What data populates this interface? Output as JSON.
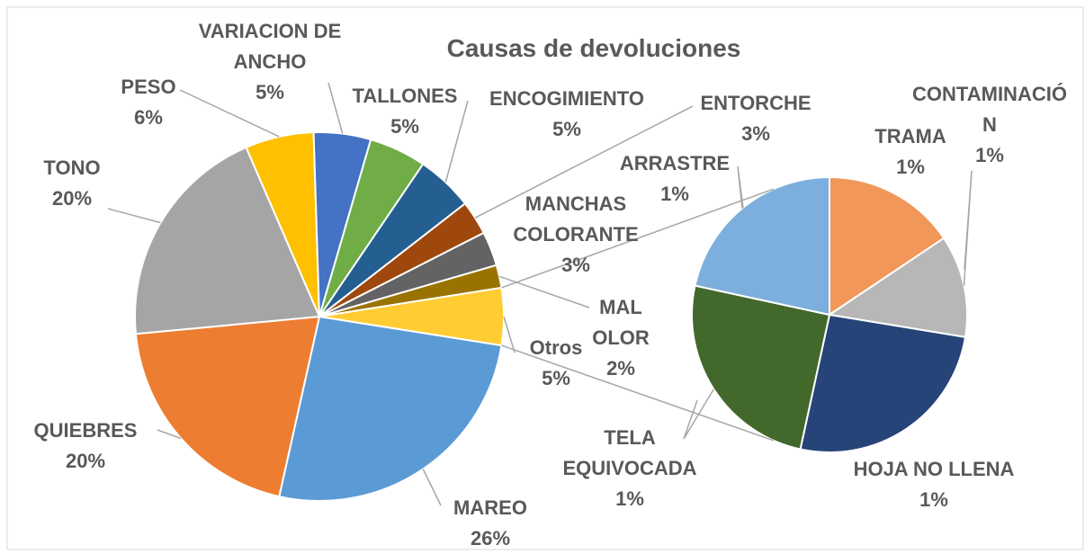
{
  "chart_data": {
    "type": "pie_of_pie",
    "title": "Causas de devoluciones",
    "categories": [
      "MAREO",
      "QUIEBRES",
      "TONO",
      "PESO",
      "VARIACION DE ANCHO",
      "TALLONES",
      "ENCOGIMIENTO",
      "ENTORCHE",
      "MANCHAS COLORANTE",
      "MAL OLOR",
      "Otros"
    ],
    "values": [
      26,
      20,
      20,
      6,
      5,
      5,
      5,
      3,
      3,
      2,
      5
    ],
    "value_labels": [
      "26%",
      "20%",
      "20%",
      "6%",
      "5%",
      "5%",
      "5%",
      "3%",
      "3%",
      "2%",
      "5%"
    ],
    "colors": [
      "#5b9bd5",
      "#ed7d31",
      "#a5a5a5",
      "#ffc000",
      "#4472c4",
      "#70ad47",
      "#255e91",
      "#9e480e",
      "#636363",
      "#997300",
      "#ffcd33"
    ],
    "secondary": {
      "categories": [
        "TRAMA",
        "CONTAMINACIÓN",
        "HOJA NO LLENA",
        "TELA EQUIVOCADA",
        "ARRASTRE"
      ],
      "values": [
        0.78,
        0.6,
        1.29,
        1.25,
        1.08
      ],
      "value_labels": [
        "1%",
        "1%",
        "1%",
        "1%",
        "1%"
      ],
      "colors": [
        "#f1975a",
        "#b7b7b7",
        "#264478",
        "#43682b",
        "#7cafdd"
      ]
    }
  }
}
